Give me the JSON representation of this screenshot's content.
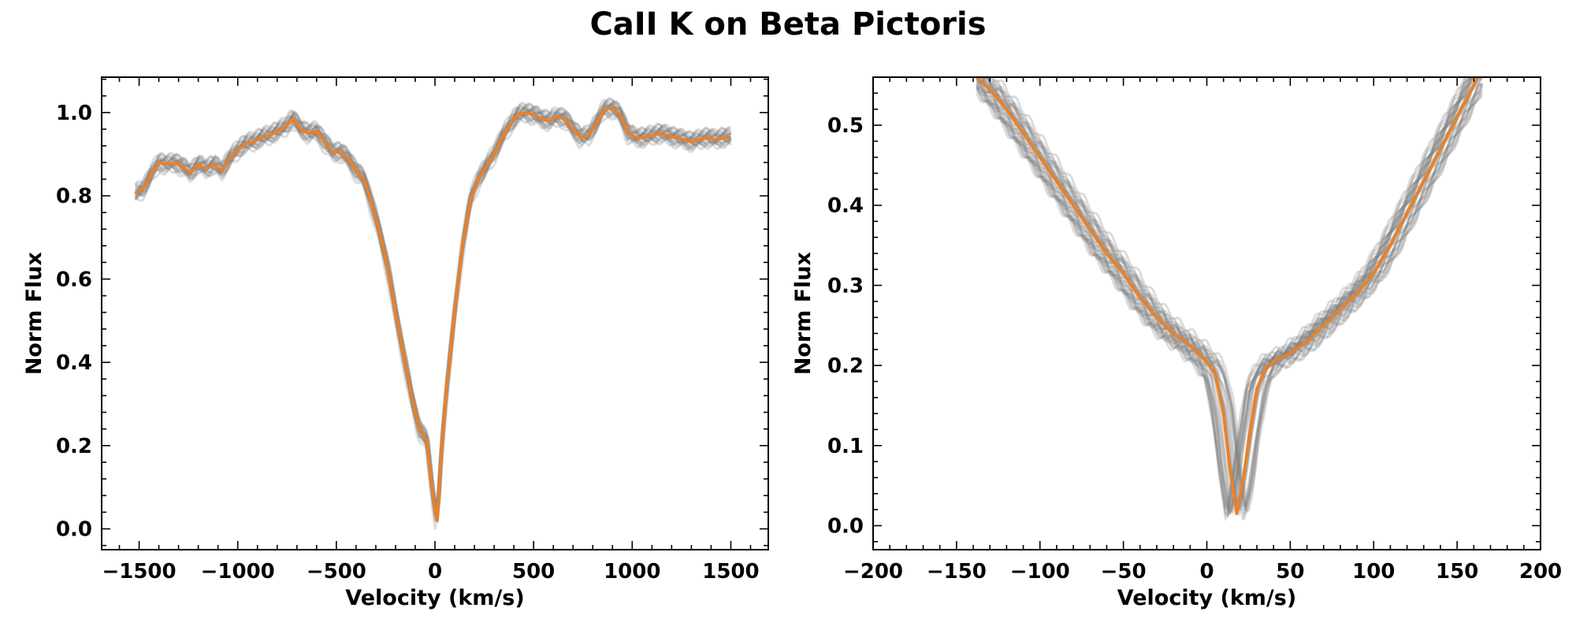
{
  "figure": {
    "title": "CaII K on Beta Pictoris"
  },
  "colors": {
    "median": "#e8812a",
    "spectra": "#808080",
    "axes": "#000000",
    "background": "#ffffff"
  },
  "chart_data": [
    {
      "type": "line",
      "panel": "left",
      "xlabel": "Velocity (km/s)",
      "ylabel": "Norm Flux",
      "xlim": [
        -1690,
        1690
      ],
      "ylim": [
        -0.05,
        1.085
      ],
      "xticks": [
        -1500,
        -1000,
        -500,
        0,
        500,
        1000,
        1500
      ],
      "xtick_labels": [
        "−1500",
        "−1000",
        "−500",
        "0",
        "500",
        "1000",
        "1500"
      ],
      "yticks": [
        0.0,
        0.2,
        0.4,
        0.6,
        0.8,
        1.0
      ],
      "ytick_labels": [
        "0.0",
        "0.2",
        "0.4",
        "0.6",
        "0.8",
        "1.0"
      ],
      "grid": false,
      "series": [
        {
          "role": "median",
          "x": [
            -1520,
            -1480,
            -1440,
            -1400,
            -1360,
            -1320,
            -1280,
            -1240,
            -1200,
            -1160,
            -1120,
            -1080,
            -1040,
            -1000,
            -960,
            -920,
            -880,
            -840,
            -800,
            -760,
            -720,
            -680,
            -640,
            -600,
            -560,
            -520,
            -480,
            -440,
            -400,
            -360,
            -320,
            -280,
            -240,
            -200,
            -160,
            -120,
            -80,
            -40,
            -10,
            10,
            20,
            35,
            60,
            100,
            140,
            180,
            220,
            260,
            300,
            340,
            380,
            420,
            460,
            500,
            540,
            580,
            620,
            660,
            700,
            740,
            780,
            820,
            860,
            900,
            940,
            980,
            1020,
            1060,
            1100,
            1140,
            1180,
            1220,
            1260,
            1300,
            1340,
            1380,
            1420,
            1460,
            1500
          ],
          "y": [
            0.805,
            0.815,
            0.85,
            0.88,
            0.875,
            0.88,
            0.87,
            0.855,
            0.875,
            0.865,
            0.875,
            0.86,
            0.89,
            0.91,
            0.925,
            0.93,
            0.94,
            0.945,
            0.955,
            0.965,
            0.985,
            0.96,
            0.95,
            0.955,
            0.93,
            0.905,
            0.905,
            0.89,
            0.86,
            0.84,
            0.78,
            0.71,
            0.63,
            0.52,
            0.42,
            0.32,
            0.24,
            0.21,
            0.08,
            0.02,
            0.08,
            0.2,
            0.34,
            0.52,
            0.68,
            0.79,
            0.84,
            0.87,
            0.9,
            0.94,
            0.97,
            0.995,
            1.0,
            0.995,
            0.985,
            0.98,
            0.99,
            0.985,
            0.96,
            0.94,
            0.945,
            0.975,
            1.01,
            1.01,
            0.995,
            0.95,
            0.94,
            0.94,
            0.945,
            0.95,
            0.945,
            0.94,
            0.935,
            0.93,
            0.935,
            0.94,
            0.935,
            0.94,
            0.94
          ]
        }
      ]
    },
    {
      "type": "line",
      "panel": "right",
      "xlabel": "Velocity (km/s)",
      "ylabel": "Norm Flux",
      "xlim": [
        -200,
        200
      ],
      "ylim": [
        -0.03,
        0.56
      ],
      "xticks": [
        -200,
        -150,
        -100,
        -50,
        0,
        50,
        100,
        150,
        200
      ],
      "xtick_labels": [
        "−200",
        "−150",
        "−100",
        "−50",
        "0",
        "50",
        "100",
        "150",
        "200"
      ],
      "yticks": [
        0.0,
        0.1,
        0.2,
        0.3,
        0.4,
        0.5
      ],
      "ytick_labels": [
        "0.0",
        "0.1",
        "0.2",
        "0.3",
        "0.4",
        "0.5"
      ],
      "grid": false,
      "series": [
        {
          "role": "median",
          "x": [
            -138,
            -130,
            -120,
            -110,
            -100,
            -90,
            -80,
            -70,
            -60,
            -50,
            -40,
            -30,
            -20,
            -10,
            0,
            5,
            10,
            14,
            18,
            22,
            26,
            30,
            35,
            40,
            50,
            60,
            70,
            80,
            90,
            100,
            110,
            120,
            130,
            140,
            150,
            160,
            165
          ],
          "y": [
            0.56,
            0.545,
            0.52,
            0.49,
            0.46,
            0.43,
            0.4,
            0.37,
            0.34,
            0.315,
            0.285,
            0.26,
            0.24,
            0.225,
            0.205,
            0.19,
            0.14,
            0.07,
            0.015,
            0.06,
            0.12,
            0.17,
            0.195,
            0.205,
            0.215,
            0.23,
            0.25,
            0.27,
            0.29,
            0.315,
            0.35,
            0.39,
            0.43,
            0.47,
            0.51,
            0.55,
            0.57
          ]
        }
      ]
    }
  ]
}
